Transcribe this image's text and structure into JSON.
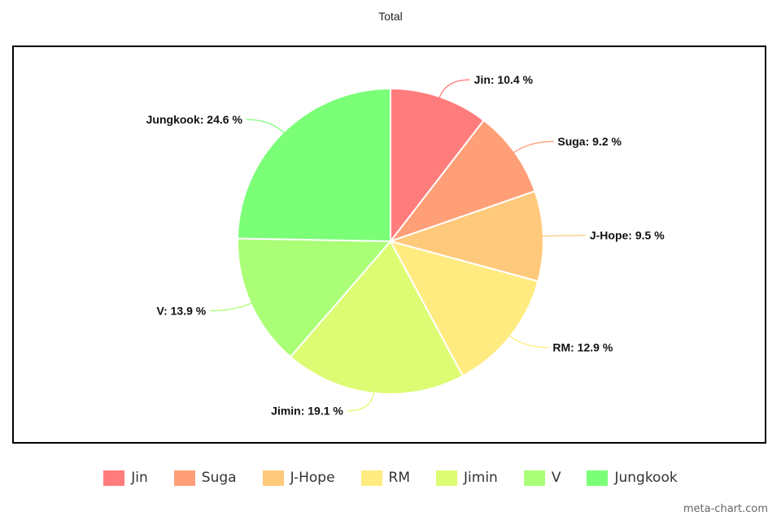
{
  "chart_data": {
    "type": "pie",
    "title": "Total",
    "label_suffix": " %",
    "slices": [
      {
        "name": "Jin",
        "value": 10.4,
        "color": "#ff7c7c"
      },
      {
        "name": "Suga",
        "value": 9.2,
        "color": "#ff9f77"
      },
      {
        "name": "J-Hope",
        "value": 9.5,
        "color": "#ffc97c"
      },
      {
        "name": "RM",
        "value": 12.9,
        "color": "#ffeb80"
      },
      {
        "name": "Jimin",
        "value": 19.1,
        "color": "#ddfc74"
      },
      {
        "name": "V",
        "value": 13.9,
        "color": "#aaff77"
      },
      {
        "name": "Jungkook",
        "value": 24.6,
        "color": "#7aff77"
      }
    ],
    "start_angle": "top, clockwise",
    "legend_position": "bottom"
  },
  "watermark": "meta-chart.com"
}
